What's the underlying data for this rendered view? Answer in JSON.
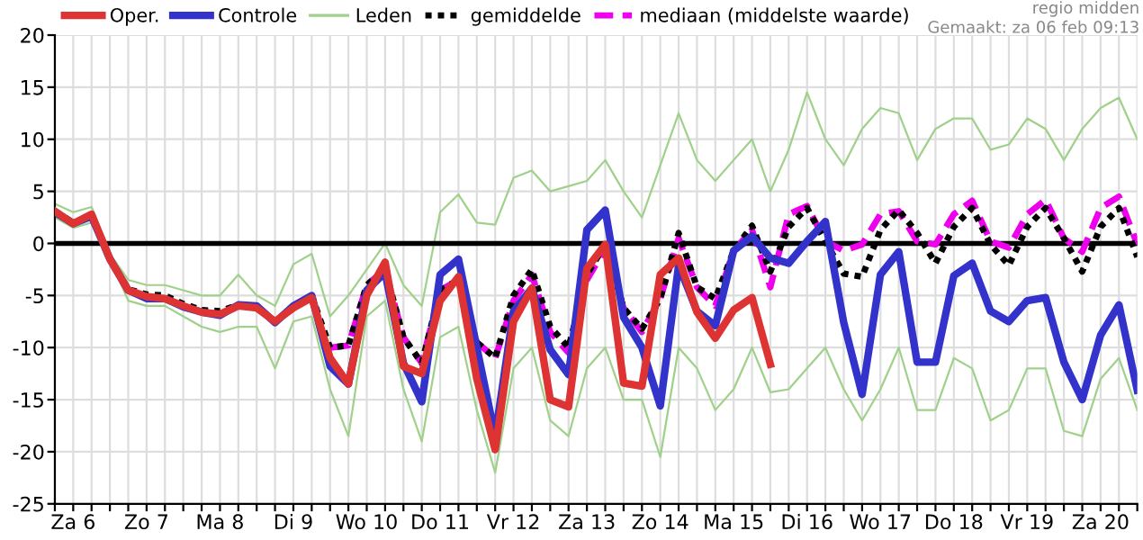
{
  "chart_data": {
    "type": "line",
    "legend": "top",
    "grid": true,
    "annotations": [
      "regio midden",
      "Gemaakt: za 06 feb 09:13"
    ],
    "categories": [
      null,
      "Za 6",
      null,
      null,
      null,
      "Zo 7",
      null,
      null,
      null,
      "Ma 8",
      null,
      null,
      null,
      "Di 9",
      null,
      null,
      null,
      "Wo 10",
      null,
      null,
      null,
      "Do 11",
      null,
      null,
      null,
      "Vr 12",
      null,
      null,
      null,
      "Za 13",
      null,
      null,
      null,
      "Zo 14",
      null,
      null,
      null,
      "Ma 15",
      null,
      null,
      null,
      "Di 16",
      null,
      null,
      null,
      "Wo 17",
      null,
      null,
      null,
      "Do 18",
      null,
      null,
      null,
      "Vr 19",
      null,
      null,
      null,
      "Za 20",
      null,
      null
    ],
    "ylim": [
      -25,
      20
    ],
    "yticks": [
      -25,
      -20,
      -15,
      -10,
      -5,
      0,
      5,
      10,
      15,
      20
    ],
    "ref_lines": [
      {
        "axis": "y",
        "value": 0,
        "color": "#000000"
      }
    ],
    "series": [
      {
        "name": "Oper.",
        "color": "#dd3333",
        "line_style": "solid",
        "values": [
          3.1,
          1.9,
          2.8,
          -1.5,
          -4.5,
          -5.1,
          -5.3,
          -6.0,
          -6.6,
          -6.8,
          -6.0,
          -6.2,
          -7.5,
          -6.2,
          -5.2,
          -11,
          -13.5,
          -5,
          -1.8,
          -11.8,
          -12.5,
          -5.5,
          -3.2,
          -13,
          -19.8,
          -7.5,
          -4.3,
          -15,
          -15.7,
          -2.4,
          -0.1,
          -13.4,
          -13.7,
          -3.0,
          -1.4,
          -6.6,
          -9.1,
          -6.4,
          -5.2,
          -11.6,
          null,
          null,
          null,
          null,
          null,
          null,
          null,
          null,
          null,
          null,
          null,
          null,
          null,
          null,
          null,
          null,
          null,
          null,
          null,
          null
        ]
      },
      {
        "name": "Controle",
        "color": "#3333cc",
        "line_style": "solid",
        "values": [
          3.0,
          1.9,
          2.6,
          -1.5,
          -4.5,
          -5.3,
          -5.3,
          -6.1,
          -6.6,
          -6.9,
          -5.9,
          -6.0,
          -7.6,
          -6.0,
          -5.0,
          -11.8,
          -13.5,
          -4.5,
          -2.8,
          -11.5,
          -15.2,
          -3,
          -1.5,
          -10,
          -18.5,
          -6.5,
          -4.3,
          -10.2,
          -12.6,
          1.3,
          3.2,
          -7.1,
          -10,
          -15.6,
          -2.1,
          -6.5,
          -7.9,
          -0.7,
          0.7,
          -1.4,
          -1.9,
          0.2,
          2.1,
          -7.6,
          -14.5,
          -3,
          -0.8,
          -11.4,
          -11.4,
          -3.1,
          -1.9,
          -6.5,
          -7.5,
          -5.5,
          -5.2,
          -11.4,
          -15,
          -8.8,
          -5.9,
          -14.1
        ]
      },
      {
        "name": "Leden",
        "color": "#9fd18a",
        "line_style": "solid",
        "values": [
          3.8,
          3.0,
          3.5,
          -1,
          -3.5,
          -4,
          -4,
          -4.5,
          -5,
          -5,
          -3,
          -5,
          -6,
          -2,
          -1,
          -7,
          -5,
          -2.5,
          0,
          -4,
          -6,
          3,
          4.7,
          2,
          1.8,
          6.3,
          7,
          5,
          5.5,
          6,
          8,
          5,
          2.5,
          7.5,
          12.5,
          8,
          6,
          8,
          10,
          5,
          9,
          14.5,
          10,
          7.5,
          11,
          13,
          12.5,
          8,
          11,
          12,
          12,
          9,
          9.5,
          12,
          11,
          8,
          11,
          13,
          14,
          10
        ]
      },
      {
        "color": "#9fd18a",
        "line_style": "solid",
        "values": [
          2.5,
          1.5,
          2,
          -1.5,
          -5.5,
          -6,
          -6,
          -7,
          -8,
          -8.5,
          -8,
          -8,
          -12,
          -7.5,
          -7,
          -14,
          -18.5,
          -7,
          -5.5,
          -14,
          -19,
          -9,
          -8,
          -16,
          -22,
          -12,
          -10,
          -17,
          -18.5,
          -12,
          -10,
          -15,
          -15,
          -20.5,
          -10,
          -12,
          -16,
          -14,
          -10,
          -14.3,
          -14,
          -12,
          -10,
          -14,
          -17,
          -14,
          -10,
          -16,
          -16,
          -11,
          -12,
          -17,
          -16,
          -12,
          -12,
          -18,
          -18.5,
          -13,
          -11,
          -16
        ]
      },
      {
        "name": "gemiddelde",
        "color": "#000000",
        "line_style": "dotted",
        "values": [
          3.1,
          2.0,
          null,
          -1.5,
          -4.4,
          -4.9,
          -5.0,
          -5.8,
          -6.4,
          -6.5,
          -5.9,
          null,
          null,
          null,
          -5.0,
          -10,
          -9.8,
          -4,
          -2.5,
          -9,
          -11.5,
          -4.5,
          -3.5,
          -9.5,
          -11,
          -5,
          -2.5,
          -8,
          -10,
          -3,
          -0.1,
          -6.2,
          -8.2,
          -5.3,
          1.0,
          -4.2,
          -5.3,
          -0.7,
          1.7,
          -2.7,
          1.6,
          3.4,
          0.2,
          -2.9,
          -3.2,
          1.3,
          3.2,
          1.0,
          -1.9,
          1.6,
          3.4,
          -0.1,
          -2.1,
          1.6,
          3.4,
          0.5,
          -2.7,
          1.6,
          3.4,
          -1.3
        ]
      },
      {
        "name": "mediaan (middelste waarde)",
        "color": "#ee00ee",
        "line_style": "dashed",
        "values": [
          null,
          null,
          null,
          null,
          null,
          null,
          null,
          null,
          null,
          null,
          null,
          null,
          null,
          null,
          null,
          -10,
          -9.8,
          -4,
          -2.5,
          -9,
          -11.5,
          -4.5,
          -3.5,
          -9.5,
          -11,
          -5.5,
          -3,
          -8.5,
          -10.5,
          -3.5,
          -0.5,
          -6.2,
          -8.5,
          -5.3,
          0.5,
          -4.2,
          -6,
          -0.7,
          1.3,
          -4.2,
          2.8,
          3.6,
          0.2,
          -0.7,
          -0.1,
          2.8,
          3.1,
          0.2,
          -0.1,
          2.8,
          4.1,
          0.2,
          -0.4,
          2.8,
          4.2,
          0.5,
          -0.8,
          3.4,
          4.5,
          -0.1
        ]
      }
    ]
  }
}
